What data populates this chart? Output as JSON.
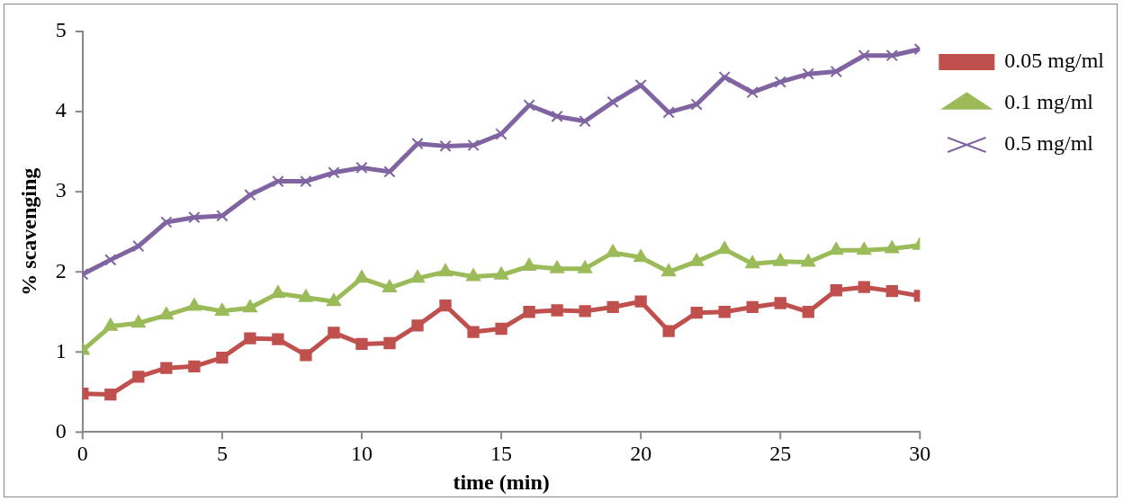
{
  "chart_data": {
    "type": "line",
    "xlabel": "time (min)",
    "ylabel": "% scavenging",
    "x": [
      0,
      1,
      2,
      3,
      4,
      5,
      6,
      7,
      8,
      9,
      10,
      11,
      12,
      13,
      14,
      15,
      16,
      17,
      18,
      19,
      20,
      21,
      22,
      23,
      24,
      25,
      26,
      27,
      28,
      29,
      30
    ],
    "xlim": [
      0,
      30
    ],
    "xticks": [
      0,
      5,
      10,
      15,
      20,
      25,
      30
    ],
    "ylim": [
      0,
      5
    ],
    "yticks": [
      0,
      1,
      2,
      3,
      4,
      5
    ],
    "grid": false,
    "legend": "right",
    "line_style": "solid",
    "series": [
      {
        "name": "0.05 mg/ml",
        "color": "#c0504d",
        "marker": "square",
        "values": [
          0.48,
          0.47,
          0.69,
          0.8,
          0.82,
          0.93,
          1.17,
          1.16,
          0.96,
          1.24,
          1.1,
          1.11,
          1.33,
          1.58,
          1.25,
          1.29,
          1.5,
          1.52,
          1.51,
          1.56,
          1.63,
          1.26,
          1.49,
          1.5,
          1.56,
          1.61,
          1.5,
          1.77,
          1.81,
          1.76,
          1.7
        ]
      },
      {
        "name": "0.1 mg/ml",
        "color": "#9bbb59",
        "marker": "triangle",
        "values": [
          1.02,
          1.32,
          1.36,
          1.46,
          1.57,
          1.51,
          1.55,
          1.73,
          1.68,
          1.63,
          1.92,
          1.8,
          1.92,
          2.0,
          1.94,
          1.96,
          2.07,
          2.04,
          2.04,
          2.24,
          2.18,
          2.0,
          2.13,
          2.28,
          2.1,
          2.13,
          2.12,
          2.27,
          2.27,
          2.29,
          2.33
        ]
      },
      {
        "name": "0.5 mg/ml",
        "color": "#8064a2",
        "marker": "cross",
        "values": [
          1.97,
          2.15,
          2.32,
          2.62,
          2.68,
          2.7,
          2.96,
          3.13,
          3.13,
          3.24,
          3.3,
          3.25,
          3.6,
          3.57,
          3.58,
          3.72,
          4.08,
          3.94,
          3.88,
          4.12,
          4.33,
          3.99,
          4.09,
          4.43,
          4.24,
          4.37,
          4.47,
          4.5,
          4.7,
          4.7,
          4.78
        ]
      }
    ]
  }
}
